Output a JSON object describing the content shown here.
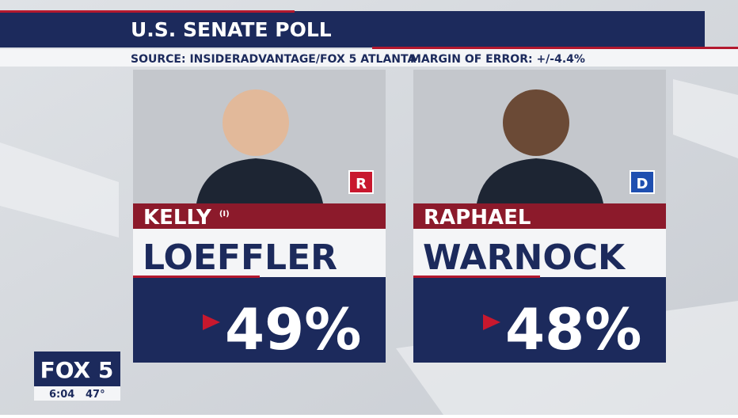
{
  "header": {
    "title": "U.S. SENATE POLL",
    "source": "SOURCE: INSIDERADVANTAGE/FOX 5 ATLANTA",
    "margin": "MARGIN OF ERROR: +/-4.4%"
  },
  "candidates": [
    {
      "first": "KELLY",
      "incumbent": "(I)",
      "last": "LOEFFLER",
      "party": "R",
      "percent": "49%"
    },
    {
      "first": "RAPHAEL",
      "last": "WARNOCK",
      "party": "D",
      "percent": "48%"
    }
  ],
  "bug": {
    "logo": "FOX 5",
    "time": "6:04",
    "temp": "47°"
  }
}
